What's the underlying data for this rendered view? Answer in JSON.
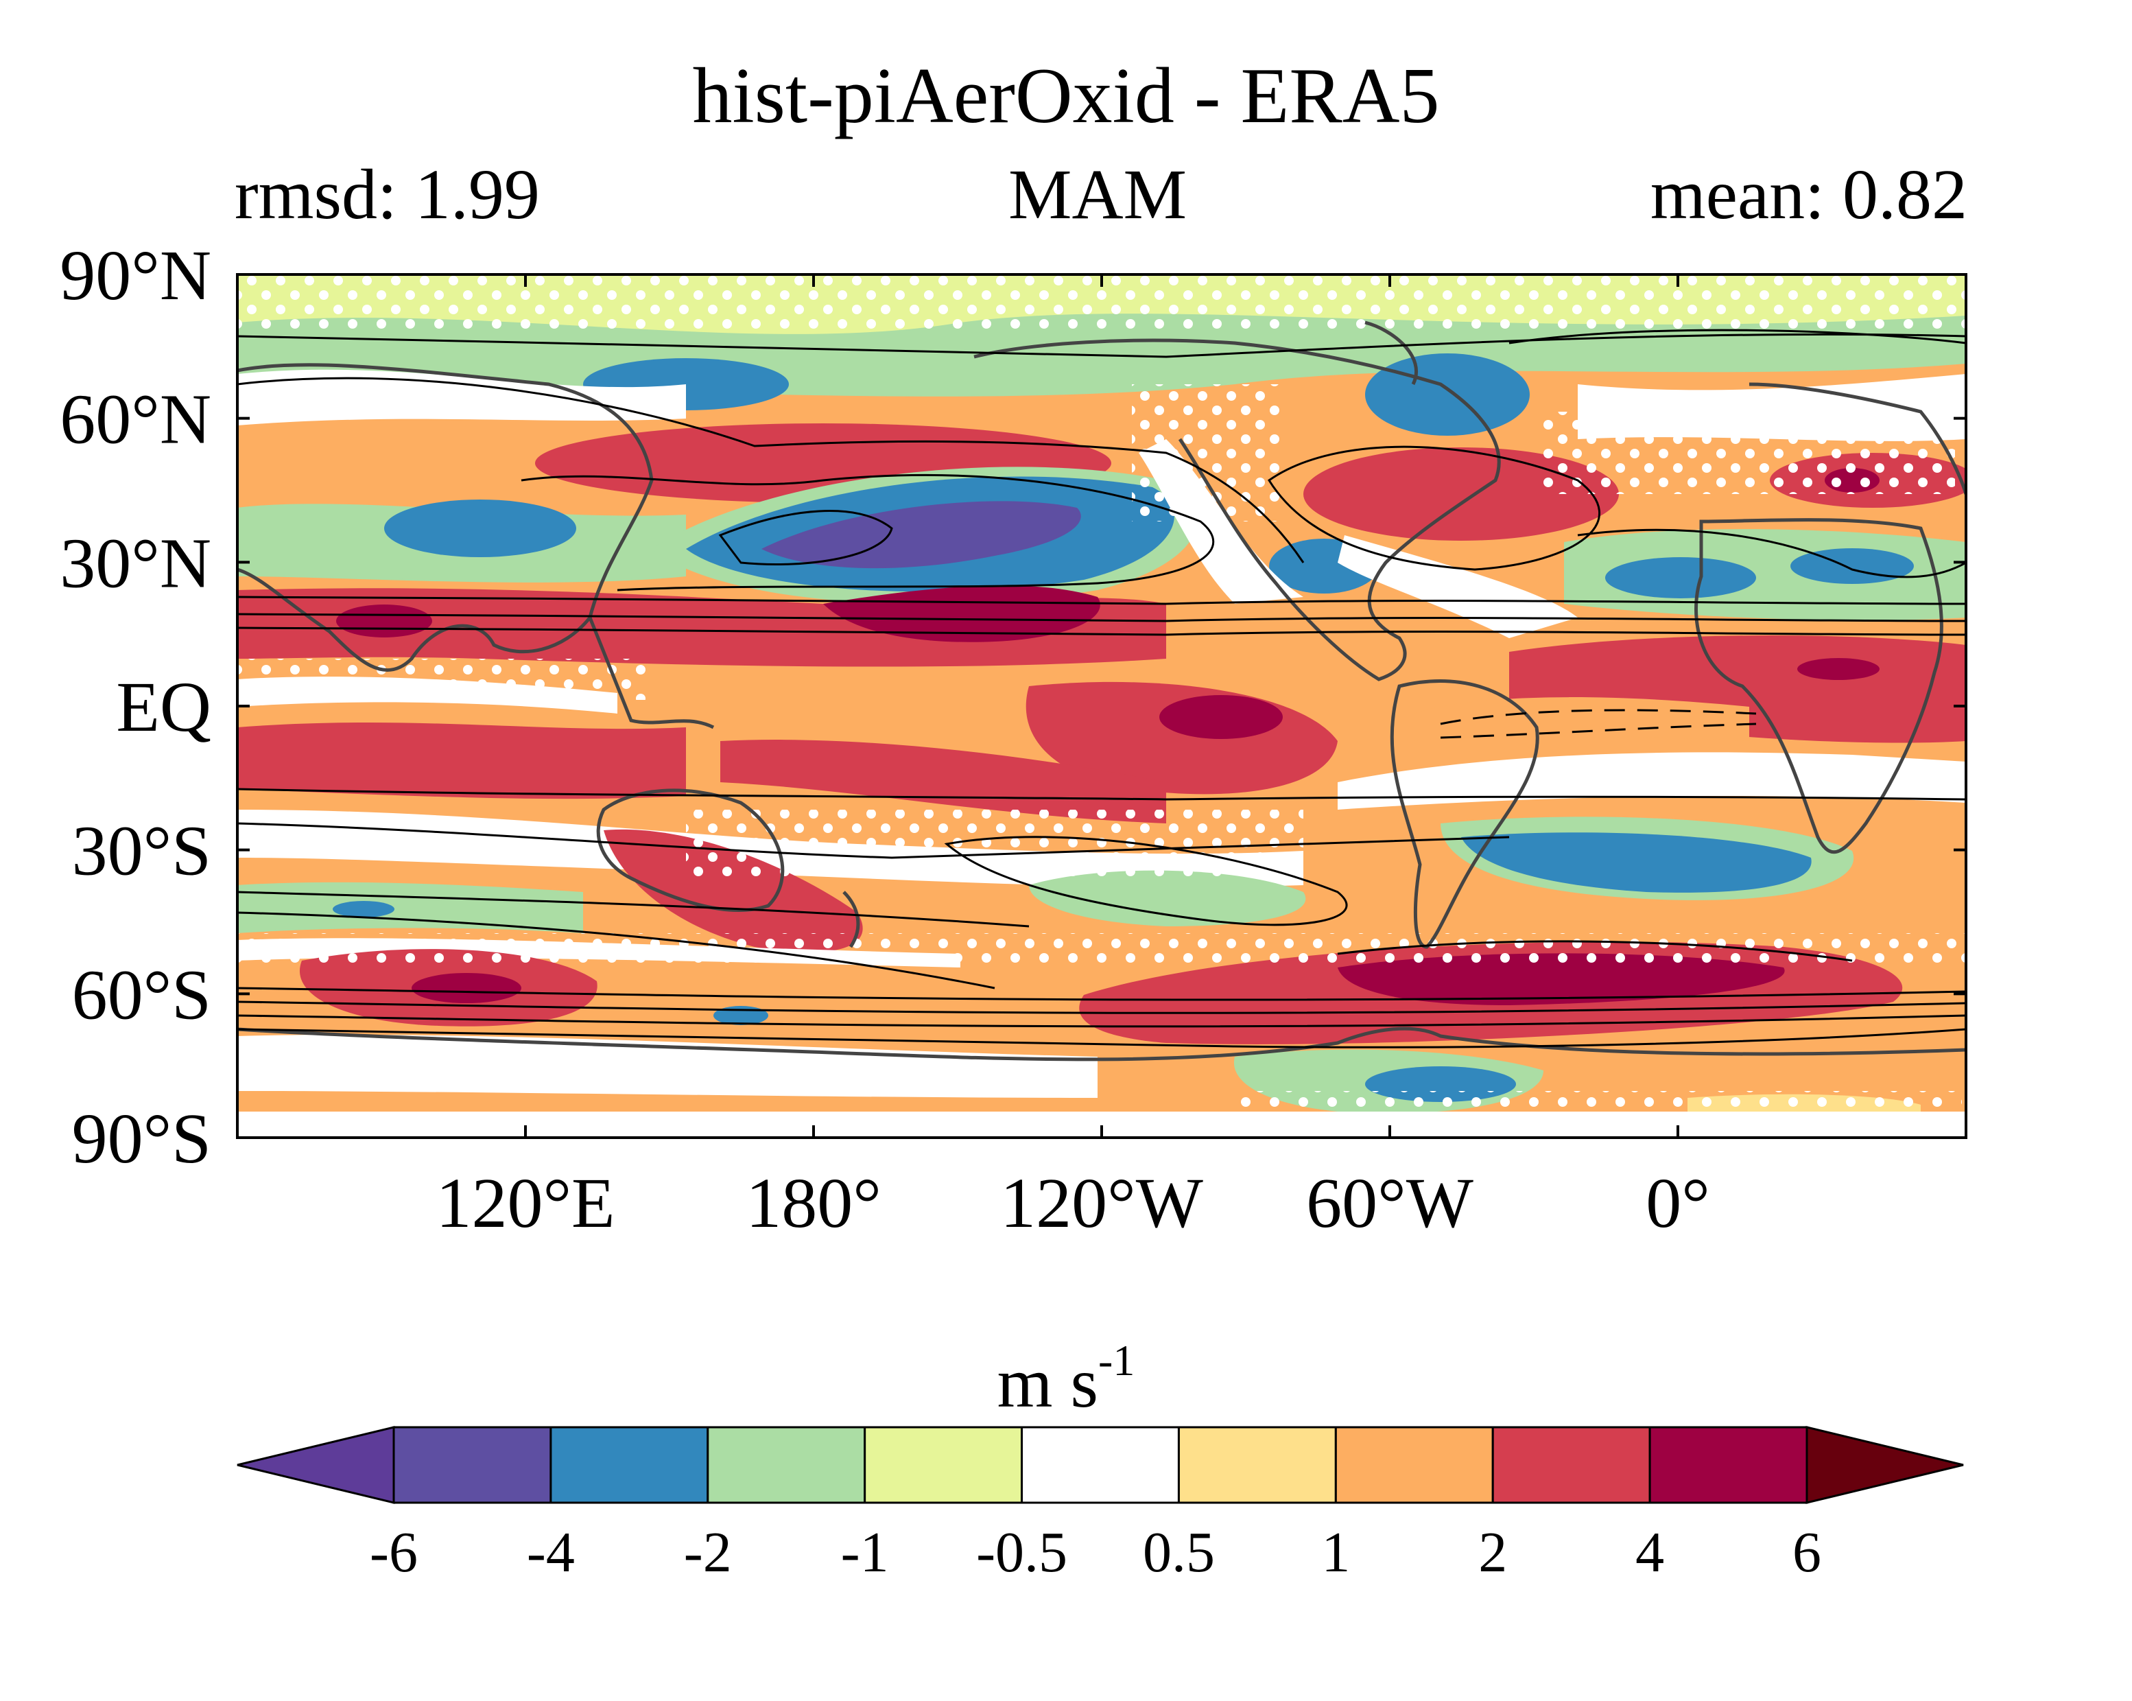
{
  "title": "hist-piAerOxid - ERA5",
  "subtitle": {
    "left": "rmsd: 1.99",
    "center": "MAM",
    "right": "mean: 0.82"
  },
  "map": {
    "projection": "cylindrical equidistant, centered ~150°W",
    "lon_range": [
      60,
      420
    ],
    "lat_range": [
      -90,
      90
    ],
    "x_ticks": [
      {
        "lon": 120,
        "label": "120°E"
      },
      {
        "lon": 180,
        "label": "180°"
      },
      {
        "lon": 240,
        "label": "120°W"
      },
      {
        "lon": 300,
        "label": "60°W"
      },
      {
        "lon": 360,
        "label": "0°"
      }
    ],
    "y_ticks": [
      {
        "lat": 90,
        "label": "90°N"
      },
      {
        "lat": 60,
        "label": "60°N"
      },
      {
        "lat": 30,
        "label": "30°N"
      },
      {
        "lat": 0,
        "label": "EQ"
      },
      {
        "lat": -30,
        "label": "30°S"
      },
      {
        "lat": -60,
        "label": "60°S"
      },
      {
        "lat": -90,
        "label": "90°S"
      }
    ],
    "stippling": "white dots mark regions where difference is not significant",
    "overlay": "black contours of climatological zonal wind; dashed = negative"
  },
  "colorbar": {
    "units_base": "m s",
    "units_sup": "-1",
    "extend": "both",
    "levels": [
      "-6",
      "-4",
      "-2",
      "-1",
      "-0.5",
      "0.5",
      "1",
      "2",
      "4",
      "6"
    ],
    "colors": [
      "#5e3c99",
      "#5e4fa2",
      "#3288bd",
      "#abdda4",
      "#e6f598",
      "#ffffff",
      "#fee08b",
      "#fdae61",
      "#d53e4f",
      "#9e0142",
      "#67000d"
    ]
  }
}
